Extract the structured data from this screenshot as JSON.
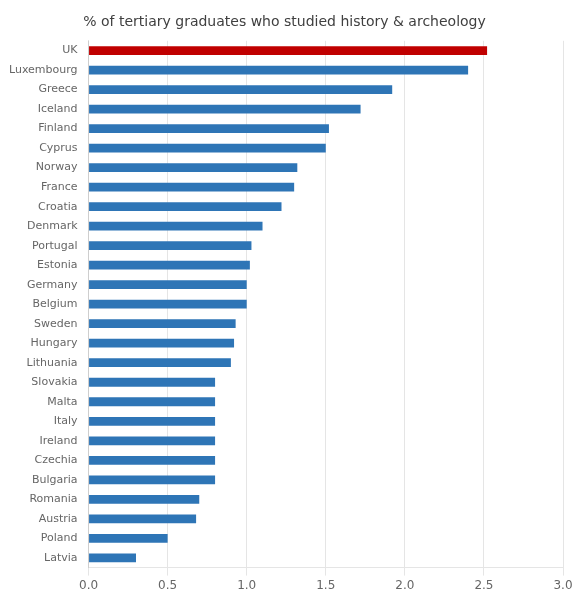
{
  "chart_data": {
    "type": "bar",
    "orientation": "horizontal",
    "title": "% of tertiary graduates who studied history & archeology",
    "categories": [
      "Latvia",
      "Poland",
      "Austria",
      "Romania",
      "Bulgaria",
      "Czechia",
      "Ireland",
      "Italy",
      "Malta",
      "Slovakia",
      "Lithuania",
      "Hungary",
      "Sweden",
      "Belgium",
      "Germany",
      "Estonia",
      "Portugal",
      "Denmark",
      "Croatia",
      "France",
      "Norway",
      "Cyprus",
      "Finland",
      "Iceland",
      "Greece",
      "Luxembourg",
      "UK"
    ],
    "values": [
      0.3,
      0.5,
      0.68,
      0.7,
      0.8,
      0.8,
      0.8,
      0.8,
      0.8,
      0.8,
      0.9,
      0.92,
      0.93,
      1.0,
      1.0,
      1.02,
      1.03,
      1.1,
      1.22,
      1.3,
      1.32,
      1.5,
      1.52,
      1.72,
      1.92,
      2.4,
      2.52
    ],
    "colors": [
      "#2e75b6",
      "#2e75b6",
      "#2e75b6",
      "#2e75b6",
      "#2e75b6",
      "#2e75b6",
      "#2e75b6",
      "#2e75b6",
      "#2e75b6",
      "#2e75b6",
      "#2e75b6",
      "#2e75b6",
      "#2e75b6",
      "#2e75b6",
      "#2e75b6",
      "#2e75b6",
      "#2e75b6",
      "#2e75b6",
      "#2e75b6",
      "#2e75b6",
      "#2e75b6",
      "#2e75b6",
      "#2e75b6",
      "#2e75b6",
      "#2e75b6",
      "#2e75b6",
      "#c00000"
    ],
    "xlim": [
      0,
      3.0
    ],
    "xticks": [
      {
        "value": 0,
        "label": "0.0"
      },
      0.5,
      {
        "value": 1,
        "label": "1.0"
      },
      1.5,
      {
        "value": 2,
        "label": "2.0"
      },
      2.5,
      {
        "value": 3,
        "label": "3.0"
      }
    ],
    "grid": true
  }
}
